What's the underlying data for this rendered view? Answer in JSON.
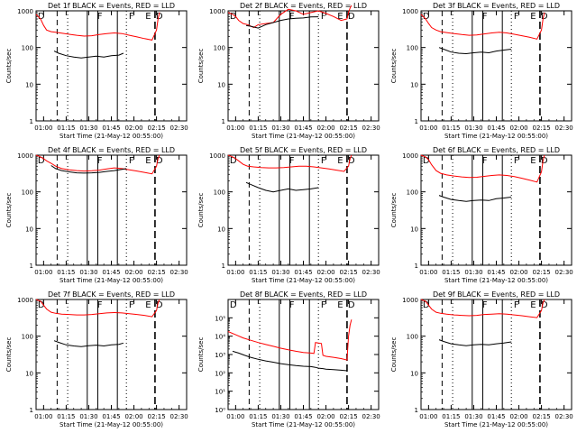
{
  "chart_data": [
    {
      "type": "line",
      "title": "Det 1f BLACK = Events, RED = LLD",
      "xlabel": "Start Time (21-May-12 00:55:00)",
      "ylabel": "Counts/sec",
      "scale": "log",
      "ylim": [
        1,
        1000
      ],
      "y_ticks": [
        1,
        10,
        100,
        1000
      ],
      "y_tick_labels": [
        "1",
        "10",
        "100",
        "1000"
      ],
      "x_ticks": [
        "01:00",
        "01:15",
        "01:30",
        "01:45",
        "02:00",
        "02:15",
        "02:30"
      ],
      "flags": [
        "D",
        "F",
        "F",
        "E",
        "D"
      ],
      "series": [
        {
          "color": "#ff0000",
          "x": [
            "00:55",
            "00:58",
            "01:00",
            "01:02",
            "01:05",
            "01:08",
            "01:12",
            "01:17",
            "01:22",
            "01:27",
            "01:32",
            "01:37",
            "01:42",
            "01:47",
            "01:52",
            "01:57",
            "02:02",
            "02:07",
            "02:12",
            "02:15",
            "02:16",
            "02:17"
          ],
          "y": [
            800,
            600,
            400,
            300,
            270,
            260,
            245,
            230,
            215,
            205,
            210,
            225,
            240,
            250,
            240,
            215,
            195,
            175,
            160,
            300,
            600,
            900
          ]
        },
        {
          "color": "#000000",
          "x": [
            "01:07",
            "01:10",
            "01:15",
            "01:20",
            "01:25",
            "01:30",
            "01:35",
            "01:40",
            "01:45",
            "01:50",
            "01:53"
          ],
          "y": [
            80,
            70,
            60,
            55,
            52,
            55,
            58,
            55,
            60,
            62,
            70
          ]
        }
      ]
    },
    {
      "type": "line",
      "title": "Det 2f BLACK = Events, RED = LLD",
      "xlabel": "Start Time (21-May-12 00:55:00)",
      "ylabel": "Counts/sec",
      "scale": "log",
      "ylim": [
        1,
        1000
      ],
      "y_ticks": [
        1,
        10,
        100,
        1000
      ],
      "y_tick_labels": [
        "1",
        "10",
        "100",
        "1000"
      ],
      "x_ticks": [
        "01:00",
        "01:15",
        "01:30",
        "01:45",
        "02:00",
        "02:15",
        "02:30"
      ],
      "flags": [
        "D",
        "F",
        "F",
        "E",
        "D"
      ],
      "series": [
        {
          "color": "#ff0000",
          "x": [
            "00:55",
            "00:58",
            "01:00",
            "01:02",
            "01:05",
            "01:08",
            "01:12",
            "01:15",
            "01:20",
            "01:25",
            "01:30",
            "01:35",
            "01:40",
            "01:45",
            "01:50",
            "01:55",
            "02:00",
            "02:05",
            "02:10",
            "02:14",
            "02:15",
            "02:16",
            "02:17"
          ],
          "y": [
            900,
            800,
            700,
            550,
            450,
            420,
            350,
            420,
            450,
            480,
            800,
            1100,
            1000,
            800,
            900,
            1000,
            850,
            700,
            550,
            600,
            900,
            1200,
            1400
          ]
        },
        {
          "color": "#000000",
          "x": [
            "01:07",
            "01:10",
            "01:15",
            "01:20",
            "01:25",
            "01:30",
            "01:35",
            "01:40",
            "01:45",
            "01:50",
            "01:55"
          ],
          "y": [
            400,
            380,
            340,
            420,
            480,
            550,
            600,
            630,
            640,
            680,
            690
          ]
        }
      ]
    },
    {
      "type": "line",
      "title": "Det 3f BLACK = Events, RED = LLD",
      "xlabel": "Start Time (21-May-12 00:55:00)",
      "ylabel": "Counts/sec",
      "scale": "log",
      "ylim": [
        1,
        1000
      ],
      "y_ticks": [
        1,
        10,
        100,
        1000
      ],
      "y_tick_labels": [
        "1",
        "10",
        "100",
        "1000"
      ],
      "x_ticks": [
        "01:00",
        "01:15",
        "01:30",
        "01:45",
        "02:00",
        "02:15",
        "02:30"
      ],
      "flags": [
        "D",
        "F",
        "F",
        "E",
        "D"
      ],
      "series": [
        {
          "color": "#ff0000",
          "x": [
            "00:55",
            "00:58",
            "01:00",
            "01:02",
            "01:05",
            "01:08",
            "01:12",
            "01:17",
            "01:22",
            "01:27",
            "01:32",
            "01:37",
            "01:42",
            "01:47",
            "01:52",
            "01:57",
            "02:02",
            "02:07",
            "02:12",
            "02:15",
            "02:16",
            "02:17"
          ],
          "y": [
            800,
            600,
            450,
            350,
            300,
            270,
            255,
            240,
            225,
            215,
            220,
            235,
            250,
            260,
            250,
            230,
            210,
            190,
            170,
            300,
            600,
            900
          ]
        },
        {
          "color": "#000000",
          "x": [
            "01:07",
            "01:10",
            "01:15",
            "01:20",
            "01:25",
            "01:30",
            "01:35",
            "01:40",
            "01:45",
            "01:50",
            "01:55"
          ],
          "y": [
            100,
            90,
            75,
            70,
            68,
            72,
            75,
            72,
            80,
            85,
            90
          ]
        }
      ]
    },
    {
      "type": "line",
      "title": "Det 4f BLACK = Events, RED = LLD",
      "xlabel": "Start Time (21-May-12 00:55:00)",
      "ylabel": "Counts/sec",
      "scale": "log",
      "ylim": [
        1,
        1000
      ],
      "y_ticks": [
        1,
        10,
        100,
        1000
      ],
      "y_tick_labels": [
        "1",
        "10",
        "100",
        "1000"
      ],
      "x_ticks": [
        "01:00",
        "01:15",
        "01:30",
        "01:45",
        "02:00",
        "02:15",
        "02:30"
      ],
      "flags": [
        "D",
        "F",
        "F",
        "E",
        "D"
      ],
      "series": [
        {
          "color": "#ff0000",
          "x": [
            "00:55",
            "00:58",
            "01:00",
            "01:02",
            "01:05",
            "01:08",
            "01:12",
            "01:17",
            "01:22",
            "01:27",
            "01:32",
            "01:37",
            "01:42",
            "01:47",
            "01:52",
            "01:57",
            "02:02",
            "02:07",
            "02:12",
            "02:15",
            "02:16",
            "02:17"
          ],
          "y": [
            1000,
            900,
            800,
            700,
            600,
            500,
            430,
            400,
            380,
            370,
            375,
            390,
            420,
            450,
            430,
            400,
            370,
            340,
            310,
            500,
            800,
            1000
          ]
        },
        {
          "color": "#000000",
          "x": [
            "01:05",
            "01:08",
            "01:12",
            "01:17",
            "01:22",
            "01:27",
            "01:32",
            "01:37",
            "01:42",
            "01:47",
            "01:52",
            "01:55"
          ],
          "y": [
            520,
            430,
            380,
            350,
            330,
            325,
            330,
            340,
            360,
            380,
            410,
            430
          ]
        }
      ]
    },
    {
      "type": "line",
      "title": "Det 5f BLACK = Events, RED = LLD",
      "xlabel": "Start Time (21-May-12 00:55:00)",
      "ylabel": "Counts/sec",
      "scale": "log",
      "ylim": [
        1,
        1000
      ],
      "y_ticks": [
        1,
        10,
        100,
        1000
      ],
      "y_tick_labels": [
        "1",
        "10",
        "100",
        "1000"
      ],
      "x_ticks": [
        "01:00",
        "01:15",
        "01:30",
        "01:45",
        "02:00",
        "02:15",
        "02:30"
      ],
      "flags": [
        "D",
        "F",
        "F",
        "E",
        "D"
      ],
      "series": [
        {
          "color": "#ff0000",
          "x": [
            "00:55",
            "00:58",
            "01:00",
            "01:02",
            "01:05",
            "01:08",
            "01:12",
            "01:17",
            "01:22",
            "01:27",
            "01:32",
            "01:37",
            "01:42",
            "01:47",
            "01:52",
            "01:57",
            "02:02",
            "02:07",
            "02:12",
            "02:15",
            "02:16",
            "02:17"
          ],
          "y": [
            1000,
            900,
            800,
            700,
            560,
            500,
            480,
            460,
            450,
            450,
            460,
            480,
            500,
            500,
            480,
            450,
            420,
            390,
            360,
            500,
            800,
            1000
          ]
        },
        {
          "color": "#000000",
          "x": [
            "01:07",
            "01:10",
            "01:15",
            "01:20",
            "01:25",
            "01:30",
            "01:35",
            "01:40",
            "01:45",
            "01:50",
            "01:55"
          ],
          "y": [
            180,
            160,
            130,
            110,
            100,
            110,
            120,
            110,
            115,
            120,
            130
          ]
        }
      ]
    },
    {
      "type": "line",
      "title": "Det 6f BLACK = Events, RED = LLD",
      "xlabel": "Start Time (21-May-12 00:55:00)",
      "ylabel": "Counts/sec",
      "scale": "log",
      "ylim": [
        1,
        1000
      ],
      "y_ticks": [
        1,
        10,
        100,
        1000
      ],
      "y_tick_labels": [
        "1",
        "10",
        "100",
        "1000"
      ],
      "x_ticks": [
        "01:00",
        "01:15",
        "01:30",
        "01:45",
        "02:00",
        "02:15",
        "02:30"
      ],
      "flags": [
        "D",
        "F",
        "F",
        "E",
        "D"
      ],
      "series": [
        {
          "color": "#ff0000",
          "x": [
            "00:55",
            "00:58",
            "01:00",
            "01:02",
            "01:05",
            "01:08",
            "01:12",
            "01:17",
            "01:22",
            "01:27",
            "01:32",
            "01:37",
            "01:42",
            "01:47",
            "01:52",
            "01:57",
            "02:02",
            "02:07",
            "02:12",
            "02:15",
            "02:16",
            "02:17"
          ],
          "y": [
            1000,
            900,
            750,
            550,
            380,
            320,
            290,
            270,
            255,
            245,
            250,
            265,
            280,
            290,
            280,
            260,
            235,
            210,
            185,
            350,
            700,
            1000
          ]
        },
        {
          "color": "#000000",
          "x": [
            "01:07",
            "01:10",
            "01:15",
            "01:20",
            "01:25",
            "01:30",
            "01:35",
            "01:40",
            "01:45",
            "01:50",
            "01:55"
          ],
          "y": [
            80,
            72,
            62,
            58,
            55,
            58,
            60,
            58,
            65,
            68,
            72
          ]
        }
      ]
    },
    {
      "type": "line",
      "title": "Det 7f BLACK = Events, RED = LLD",
      "xlabel": "Start Time (21-May-12 00:55:00)",
      "ylabel": "Counts/sec",
      "scale": "log",
      "ylim": [
        1,
        1000
      ],
      "y_ticks": [
        1,
        10,
        100,
        1000
      ],
      "y_tick_labels": [
        "1",
        "10",
        "100",
        "1000"
      ],
      "x_ticks": [
        "01:00",
        "01:15",
        "01:30",
        "01:45",
        "02:00",
        "02:15",
        "02:30"
      ],
      "flags": [
        "D",
        "F",
        "F",
        "E",
        "D"
      ],
      "series": [
        {
          "color": "#ff0000",
          "x": [
            "00:55",
            "00:58",
            "01:00",
            "01:02",
            "01:05",
            "01:08",
            "01:12",
            "01:17",
            "01:22",
            "01:27",
            "01:32",
            "01:37",
            "01:42",
            "01:47",
            "01:52",
            "01:57",
            "02:02",
            "02:07",
            "02:12",
            "02:15",
            "02:16",
            "02:17"
          ],
          "y": [
            1000,
            900,
            700,
            550,
            450,
            420,
            400,
            390,
            380,
            380,
            390,
            410,
            430,
            440,
            430,
            410,
            390,
            370,
            340,
            500,
            800,
            1000
          ]
        },
        {
          "color": "#000000",
          "x": [
            "01:07",
            "01:10",
            "01:15",
            "01:20",
            "01:25",
            "01:30",
            "01:35",
            "01:40",
            "01:45",
            "01:50",
            "01:53"
          ],
          "y": [
            75,
            68,
            58,
            54,
            52,
            55,
            57,
            54,
            58,
            60,
            65
          ]
        }
      ]
    },
    {
      "type": "line",
      "title": "Det 8f BLACK = Events, RED = LLD",
      "xlabel": "Start Time (21-May-12 00:55:00)",
      "ylabel": "Counts/sec",
      "scale": "log",
      "ylim": [
        1,
        1000000
      ],
      "y_ticks": [
        1,
        10,
        100,
        1000,
        10000,
        100000
      ],
      "y_tick_labels": [
        "10⁰",
        "10¹",
        "10²",
        "10³",
        "10⁴",
        "10⁵"
      ],
      "x_ticks": [
        "01:00",
        "01:15",
        "01:30",
        "01:45",
        "02:00",
        "02:15",
        "02:30"
      ],
      "flags": [
        "D",
        "F",
        "F",
        "E",
        "D"
      ],
      "series": [
        {
          "color": "#ff0000",
          "x": [
            "00:55",
            "01:00",
            "01:05",
            "01:10",
            "01:15",
            "01:20",
            "01:25",
            "01:30",
            "01:35",
            "01:40",
            "01:45",
            "01:50",
            "01:52",
            "01:53",
            "01:55",
            "01:57",
            "01:58",
            "02:00",
            "02:05",
            "02:10",
            "02:14",
            "02:15",
            "02:16",
            "02:17"
          ],
          "y": [
            18000,
            12000,
            8000,
            6000,
            4500,
            3500,
            2800,
            2200,
            1800,
            1500,
            1300,
            1200,
            1150,
            4500,
            4200,
            4000,
            900,
            800,
            700,
            600,
            500,
            10000,
            40000,
            80000
          ]
        },
        {
          "color": "#000000",
          "x": [
            "00:58",
            "01:02",
            "01:06",
            "01:10",
            "01:15",
            "01:20",
            "01:25",
            "01:30",
            "01:35",
            "01:40",
            "01:45",
            "01:50",
            "01:53",
            "01:55",
            "01:58",
            "02:00",
            "02:05",
            "02:10",
            "02:14"
          ],
          "y": [
            1500,
            1200,
            900,
            700,
            550,
            450,
            380,
            320,
            280,
            250,
            230,
            220,
            200,
            180,
            170,
            160,
            150,
            140,
            130
          ]
        }
      ]
    },
    {
      "type": "line",
      "title": "Det 9f BLACK = Events, RED = LLD",
      "xlabel": "Start Time (21-May-12 00:55:00)",
      "ylabel": "Counts/sec",
      "scale": "log",
      "ylim": [
        1,
        1000
      ],
      "y_ticks": [
        1,
        10,
        100,
        1000
      ],
      "y_tick_labels": [
        "1",
        "10",
        "100",
        "1000"
      ],
      "x_ticks": [
        "01:00",
        "01:15",
        "01:30",
        "01:45",
        "02:00",
        "02:15",
        "02:30"
      ],
      "flags": [
        "D",
        "F",
        "F",
        "E",
        "D"
      ],
      "series": [
        {
          "color": "#ff0000",
          "x": [
            "00:55",
            "00:58",
            "01:00",
            "01:02",
            "01:05",
            "01:08",
            "01:12",
            "01:17",
            "01:22",
            "01:27",
            "01:32",
            "01:37",
            "01:42",
            "01:47",
            "01:52",
            "01:57",
            "02:02",
            "02:07",
            "02:12",
            "02:15",
            "02:16",
            "02:17"
          ],
          "y": [
            1000,
            900,
            700,
            550,
            450,
            420,
            400,
            380,
            370,
            360,
            370,
            390,
            400,
            410,
            400,
            380,
            360,
            340,
            320,
            500,
            800,
            1000
          ]
        },
        {
          "color": "#000000",
          "x": [
            "01:07",
            "01:10",
            "01:15",
            "01:20",
            "01:25",
            "01:30",
            "01:35",
            "01:40",
            "01:45",
            "01:50",
            "01:55"
          ],
          "y": [
            80,
            72,
            62,
            58,
            55,
            58,
            60,
            58,
            62,
            65,
            70
          ]
        }
      ]
    }
  ]
}
